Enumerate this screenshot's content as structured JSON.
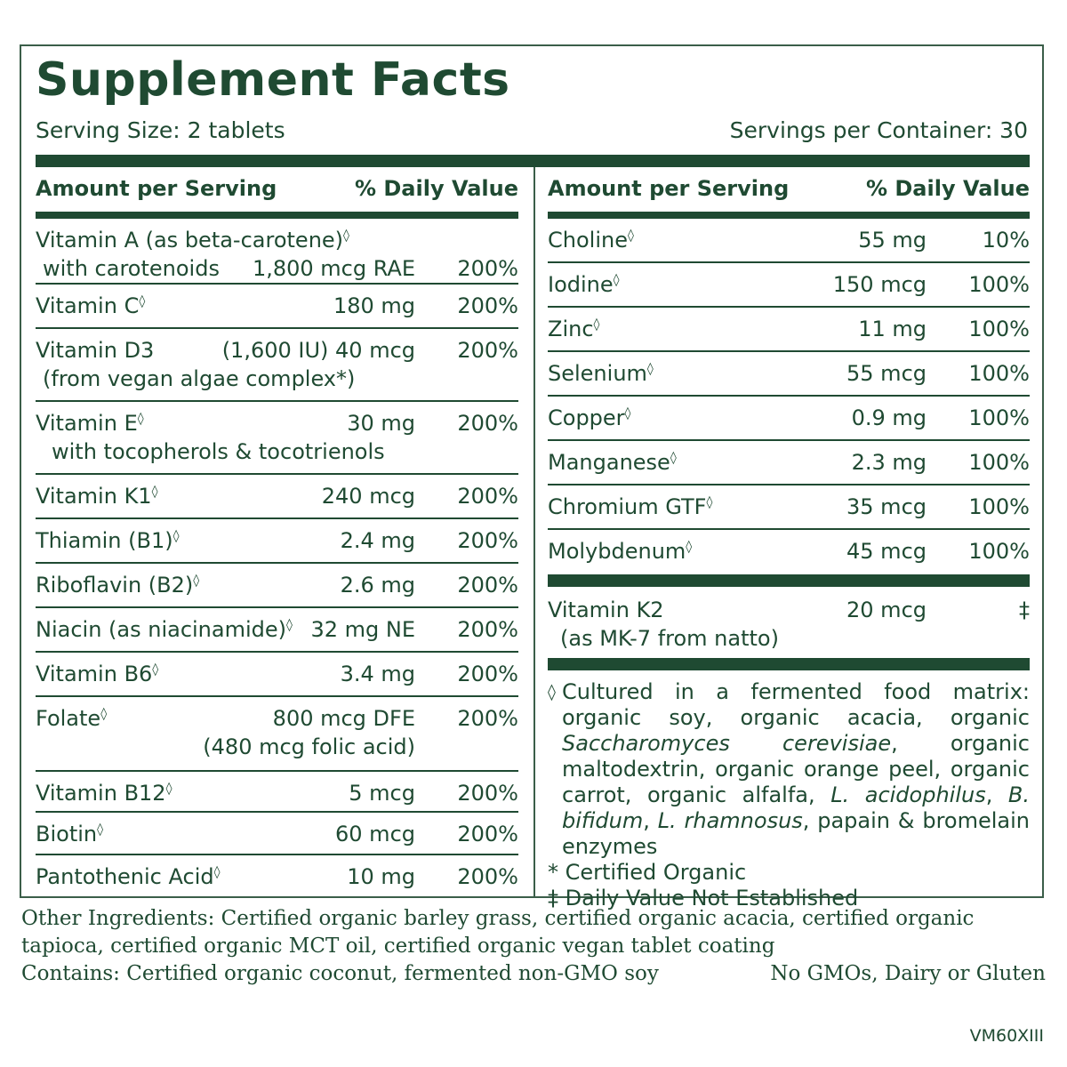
{
  "title": "Supplement Facts",
  "serving_size": "Serving Size: 2 tablets",
  "servings_per_container": "Servings per Container: 30",
  "header": {
    "amount": "Amount per Serving",
    "dv": "% Daily Value"
  },
  "symbols": {
    "diamond": "◊",
    "dagger": "‡"
  },
  "left_rows": [
    {
      "name": "Vitamin A (as beta-carotene)",
      "sub": "with carotenoids",
      "amount": "1,800 mcg RAE",
      "dv": "200%"
    },
    {
      "name": "Vitamin C",
      "amount": "180 mg",
      "dv": "200%"
    },
    {
      "name": "Vitamin D3",
      "sub": "(from vegan algae complex*)",
      "amount": "(1,600 IU) 40 mcg",
      "dv": "200%"
    },
    {
      "name": "Vitamin E",
      "sub": "with tocopherols & tocotrienols",
      "amount": "30 mg",
      "dv": "200%"
    },
    {
      "name": "Vitamin K1",
      "amount": "240 mcg",
      "dv": "200%"
    },
    {
      "name": "Thiamin (B1)",
      "amount": "2.4 mg",
      "dv": "200%"
    },
    {
      "name": "Riboflavin (B2)",
      "amount": "2.6 mg",
      "dv": "200%"
    },
    {
      "name": "Niacin (as niacinamide)",
      "amount": "32 mg NE",
      "dv": "200%"
    },
    {
      "name": "Vitamin B6",
      "amount": "3.4 mg",
      "dv": "200%"
    },
    {
      "name": "Folate",
      "amount": "800 mcg DFE",
      "amount_sub": "(480 mcg folic acid)",
      "dv": "200%"
    },
    {
      "name": "Vitamin B12",
      "amount": "5 mcg",
      "dv": "200%"
    },
    {
      "name": "Biotin",
      "amount": "60 mcg",
      "dv": "200%"
    },
    {
      "name": "Pantothenic Acid",
      "amount": "10 mg",
      "dv": "200%"
    }
  ],
  "right_rows": [
    {
      "name": "Choline",
      "amount": "55 mg",
      "dv": "10%"
    },
    {
      "name": "Iodine",
      "amount": "150 mcg",
      "dv": "100%"
    },
    {
      "name": "Zinc",
      "amount": "11 mg",
      "dv": "100%"
    },
    {
      "name": "Selenium",
      "amount": "55 mcg",
      "dv": "100%"
    },
    {
      "name": "Copper",
      "amount": "0.9 mg",
      "dv": "100%"
    },
    {
      "name": "Manganese",
      "amount": "2.3 mg",
      "dv": "100%"
    },
    {
      "name": "Chromium GTF",
      "amount": "35 mcg",
      "dv": "100%"
    },
    {
      "name": "Molybdenum",
      "amount": "45 mcg",
      "dv": "100%"
    }
  ],
  "vitamin_k2": {
    "name": "Vitamin K2",
    "sub": "(as MK-7 from natto)",
    "amount": "20 mcg",
    "dv": "‡"
  },
  "notes": {
    "matrix_parts": [
      {
        "t": "Cultured in a fermented food matrix: organic soy, organic acacia, organic ",
        "i": false
      },
      {
        "t": "Saccharomyces cerevisiae",
        "i": true
      },
      {
        "t": ", organic maltodextrin, organic orange peel, organic carrot, organic alfalfa, ",
        "i": false
      },
      {
        "t": "L. acidophilus",
        "i": true
      },
      {
        "t": ", ",
        "i": false
      },
      {
        "t": "B. bifidum",
        "i": true
      },
      {
        "t": ", ",
        "i": false
      },
      {
        "t": "L. rhamnosus",
        "i": true
      },
      {
        "t": ", papain & bromelain enzymes",
        "i": false
      }
    ],
    "organic": "* Certified Organic",
    "dv_not_established": "‡ Daily Value Not Established"
  },
  "footer": {
    "other_ingredients": "Other Ingredients: Certified organic barley grass, certified organic acacia, certified organic tapioca, certified organic MCT oil, certified organic vegan tablet coating",
    "contains": "Contains: Certified organic coconut, fermented non-GMO soy",
    "no_gmo": "No GMOs, Dairy or Gluten"
  },
  "code": "VM60XIII"
}
